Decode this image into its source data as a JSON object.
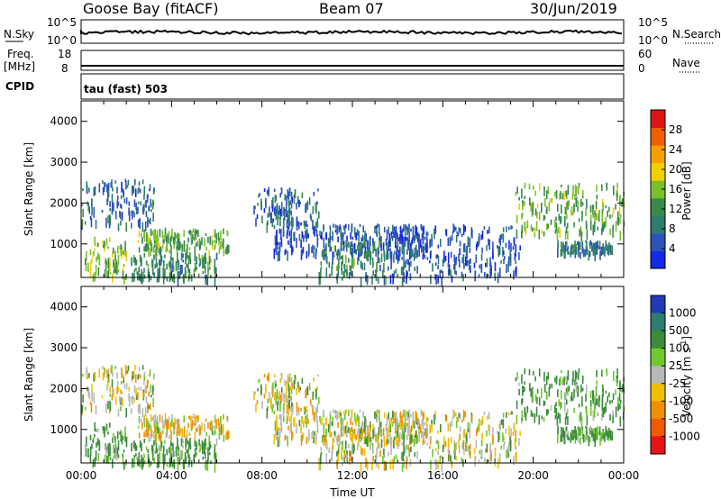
{
  "header": {
    "radar": "Goose Bay (fitACF)",
    "beam": "Beam 07",
    "date": "30/Jun/2019"
  },
  "noise_panel": {
    "left_label": "N.Sky",
    "right_label": "N.Search",
    "left_ticks": [
      "10^5",
      "10^0"
    ],
    "right_ticks": [
      "10^5",
      "10^0"
    ]
  },
  "freq_panel": {
    "left_label_1": "Freq.",
    "left_label_2": "[MHz]",
    "right_label": "Nave",
    "left_ticks": [
      "18",
      "8"
    ],
    "right_ticks": [
      "60",
      "0"
    ]
  },
  "cpid_panel": {
    "label": "CPID",
    "text": "tau (fast) 503"
  },
  "colors": {
    "power": [
      "#1428e6",
      "#2b54b8",
      "#2e7d6e",
      "#3a8a4a",
      "#7ac02a",
      "#f0d000",
      "#f5a000",
      "#f06000",
      "#dc1414"
    ],
    "velocity": [
      "#1f3cb4",
      "#2e7d6e",
      "#3c8c3c",
      "#70c82d",
      "#b8b8b8",
      "#f0c000",
      "#f09000",
      "#f05a00",
      "#e61414"
    ]
  },
  "chart_data": [
    {
      "type": "heatmap",
      "name": "Power",
      "xlabel": "",
      "ylabel": "Slant Range [km]",
      "xlim": [
        0,
        24
      ],
      "ylim": [
        180,
        4500
      ],
      "y_ticks": [
        "1000",
        "2000",
        "3000",
        "4000"
      ],
      "colorbar": {
        "label": "Power [dB]",
        "ticks": [
          "4",
          "8",
          "12",
          "16",
          "20",
          "24",
          "28"
        ],
        "range": [
          0,
          32
        ]
      },
      "echo_regions": [
        {
          "t": [
            0.0,
            3.2
          ],
          "r": [
            1500,
            2600
          ],
          "v": 8
        },
        {
          "t": [
            0.1,
            2.0
          ],
          "r": [
            200,
            1200
          ],
          "v": 18
        },
        {
          "t": [
            2.5,
            6.5
          ],
          "r": [
            850,
            1400
          ],
          "v": 16
        },
        {
          "t": [
            2.2,
            6.0
          ],
          "r": [
            180,
            800
          ],
          "v": 12
        },
        {
          "t": [
            7.6,
            10.5
          ],
          "r": [
            1500,
            2400
          ],
          "v": 8
        },
        {
          "t": [
            8.5,
            15.5
          ],
          "r": [
            800,
            1500
          ],
          "v": 6
        },
        {
          "t": [
            10.5,
            13.5
          ],
          "r": [
            180,
            1100
          ],
          "v": 12
        },
        {
          "t": [
            13.5,
            19.5
          ],
          "r": [
            180,
            1500
          ],
          "v": 6
        },
        {
          "t": [
            19.2,
            24.0
          ],
          "r": [
            1300,
            2500
          ],
          "v": 16
        },
        {
          "t": [
            21.0,
            23.5
          ],
          "r": [
            800,
            1100
          ],
          "v": 10
        }
      ]
    },
    {
      "type": "heatmap",
      "name": "Velocity",
      "xlabel": "Time UT",
      "ylabel": "Slant Range [km]",
      "xlim": [
        0,
        24
      ],
      "ylim": [
        180,
        4500
      ],
      "x_ticks": [
        "00:00",
        "04:00",
        "08:00",
        "12:00",
        "16:00",
        "20:00",
        "00:00"
      ],
      "y_ticks": [
        "1000",
        "2000",
        "3000",
        "4000"
      ],
      "colorbar": {
        "label": "Velocity [m s",
        "label_sup": "-1",
        "label_end": "]",
        "ticks": [
          "1000",
          "500",
          "100",
          "25",
          "-25",
          "-100",
          "-500",
          "-1000"
        ]
      },
      "echo_regions": [
        {
          "t": [
            0.0,
            3.2
          ],
          "r": [
            1500,
            2600
          ],
          "v": 0
        },
        {
          "t": [
            0.1,
            2.0
          ],
          "r": [
            200,
            1200
          ],
          "v": 100
        },
        {
          "t": [
            2.5,
            6.5
          ],
          "r": [
            850,
            1400
          ],
          "v": -25
        },
        {
          "t": [
            2.2,
            6.0
          ],
          "r": [
            180,
            800
          ],
          "v": 100
        },
        {
          "t": [
            7.6,
            10.5
          ],
          "r": [
            1500,
            2400
          ],
          "v": 0
        },
        {
          "t": [
            8.5,
            15.5
          ],
          "r": [
            800,
            1500
          ],
          "v": 0
        },
        {
          "t": [
            10.5,
            13.5
          ],
          "r": [
            180,
            1100
          ],
          "v": 0
        },
        {
          "t": [
            13.5,
            19.5
          ],
          "r": [
            180,
            1500
          ],
          "v": 0
        },
        {
          "t": [
            19.2,
            24.0
          ],
          "r": [
            1300,
            2500
          ],
          "v": 100
        },
        {
          "t": [
            21.0,
            23.5
          ],
          "r": [
            800,
            1100
          ],
          "v": 100
        }
      ]
    }
  ]
}
